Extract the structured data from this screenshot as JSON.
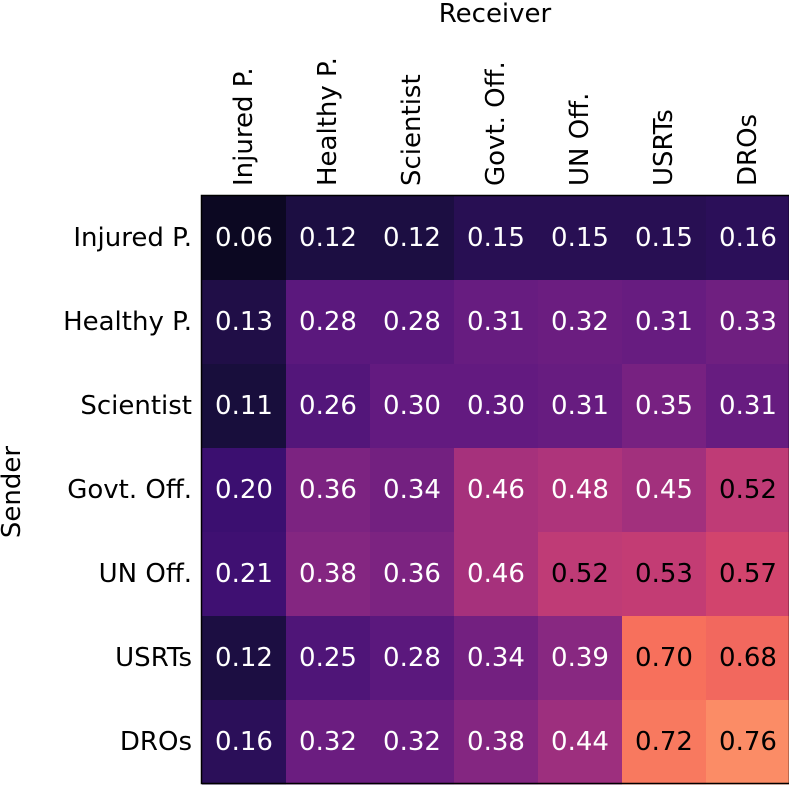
{
  "chart_data": {
    "type": "heatmap",
    "title": "",
    "xlabel": "Receiver",
    "ylabel": "Sender",
    "x_categories": [
      "Injured P.",
      "Healthy P.",
      "Scientist",
      "Govt. Off.",
      "UN Off.",
      "USRTs",
      "DROs"
    ],
    "y_categories": [
      "Injured P.",
      "Healthy P.",
      "Scientist",
      "Govt. Off.",
      "UN Off.",
      "USRTs",
      "DROs"
    ],
    "values": [
      [
        0.06,
        0.12,
        0.12,
        0.15,
        0.15,
        0.15,
        0.16
      ],
      [
        0.13,
        0.28,
        0.28,
        0.31,
        0.32,
        0.31,
        0.33
      ],
      [
        0.11,
        0.26,
        0.3,
        0.3,
        0.31,
        0.35,
        0.31
      ],
      [
        0.2,
        0.36,
        0.34,
        0.46,
        0.48,
        0.45,
        0.52
      ],
      [
        0.21,
        0.38,
        0.36,
        0.46,
        0.52,
        0.53,
        0.57
      ],
      [
        0.12,
        0.25,
        0.28,
        0.34,
        0.39,
        0.7,
        0.68
      ],
      [
        0.16,
        0.32,
        0.32,
        0.38,
        0.44,
        0.72,
        0.76
      ]
    ],
    "value_labels": [
      [
        "0.06",
        "0.12",
        "0.12",
        "0.15",
        "0.15",
        "0.15",
        "0.16"
      ],
      [
        "0.13",
        "0.28",
        "0.28",
        "0.31",
        "0.32",
        "0.31",
        "0.33"
      ],
      [
        "0.11",
        "0.26",
        "0.30",
        "0.30",
        "0.31",
        "0.35",
        "0.31"
      ],
      [
        "0.20",
        "0.36",
        "0.34",
        "0.46",
        "0.48",
        "0.45",
        "0.52"
      ],
      [
        "0.21",
        "0.38",
        "0.36",
        "0.46",
        "0.52",
        "0.53",
        "0.57"
      ],
      [
        "0.12",
        "0.25",
        "0.28",
        "0.34",
        "0.39",
        "0.70",
        "0.68"
      ],
      [
        "0.16",
        "0.32",
        "0.32",
        "0.38",
        "0.44",
        "0.72",
        "0.76"
      ]
    ],
    "colormap": "magma",
    "color_range": [
      0.0,
      1.0
    ],
    "x_axis_position": "top",
    "grid": false,
    "legend": "none"
  }
}
